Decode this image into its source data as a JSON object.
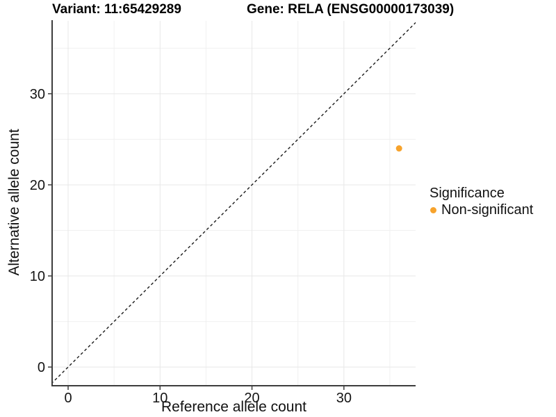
{
  "figure": {
    "background": "#FFFFFF"
  },
  "header": {
    "title_left": "Variant: 11:65429289",
    "title_right": "Gene: RELA (ENSG00000173039)"
  },
  "chart_data": {
    "type": "scatter",
    "title": "Variant: 11:65429289          Gene: RELA (ENSG00000173039)",
    "xlabel": "Reference allele count",
    "ylabel": "Alternative allele count",
    "x_ticks": [
      0,
      10,
      20,
      30
    ],
    "y_ticks": [
      0,
      10,
      20,
      30
    ],
    "x_minor_ticks": [
      5,
      15,
      25,
      35
    ],
    "y_minor_ticks": [
      5,
      15,
      25,
      35
    ],
    "xlim": [
      -1.74,
      37.8
    ],
    "ylim": [
      -2.05,
      38.0
    ],
    "grid": "major and minor gridlines, light gray on white panel",
    "identity_line": {
      "style": "dashed",
      "slope": 1,
      "intercept": 0,
      "color": "#1A1A1A"
    },
    "point_radius": 4.5,
    "series": [
      {
        "name": "Non-significant",
        "color": "#F7A32C",
        "points": [
          {
            "x": 36,
            "y": 24
          }
        ]
      }
    ],
    "legend": {
      "title": "Significance",
      "position": "right",
      "items": [
        {
          "label": "Non-significant",
          "color": "#F7A32C"
        }
      ]
    },
    "colors": {
      "grid_major": "#E7E7E7",
      "grid_minor": "#F0F0F0",
      "axis_line": "#3D3D3D",
      "tick_text": "#141414",
      "identity_line": "#1A1A1A"
    }
  }
}
